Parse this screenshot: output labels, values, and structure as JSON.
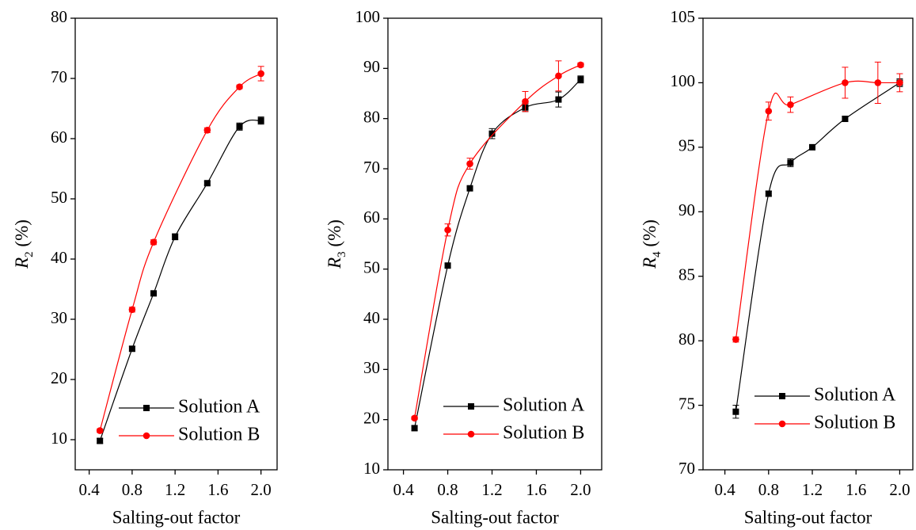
{
  "chart_data": [
    {
      "type": "line",
      "xlabel": "Salting-out factor",
      "ylabel": "R",
      "ylabel_sub": "2",
      "ylabel_unit": "(%)",
      "xlim": [
        0.27,
        2.15
      ],
      "ylim": [
        5,
        80
      ],
      "xticks": [
        0.4,
        0.8,
        1.2,
        1.6,
        {
          "value": 2,
          "label": "2.0"
        }
      ],
      "yticks": [
        10,
        20,
        30,
        40,
        50,
        60,
        70,
        80
      ],
      "legend": "lower right",
      "series": [
        {
          "name": "Solution A",
          "color": "#000000",
          "marker": "square",
          "x": [
            0.5,
            0.8,
            1.0,
            1.2,
            1.5,
            1.8,
            2.0
          ],
          "values": [
            9.8,
            25.1,
            34.3,
            43.7,
            52.6,
            62.0,
            63.0
          ],
          "error": [
            0.4,
            0.4,
            0.4,
            0.5,
            0.3,
            0.6,
            0.6
          ]
        },
        {
          "name": "Solution B",
          "color": "#ff0000",
          "marker": "circle",
          "x": [
            0.5,
            0.8,
            1.0,
            1.5,
            1.8,
            2.0
          ],
          "values": [
            11.5,
            31.6,
            42.8,
            61.4,
            68.6,
            70.8
          ],
          "error": [
            0.3,
            0.4,
            0.4,
            0.4,
            0.3,
            1.2
          ]
        }
      ]
    },
    {
      "type": "line",
      "xlabel": "Salting-out factor",
      "ylabel": "R",
      "ylabel_sub": "3",
      "ylabel_unit": "(%)",
      "xlim": [
        0.26,
        2.19
      ],
      "ylim": [
        10,
        100
      ],
      "xticks": [
        0.4,
        0.8,
        1.2,
        1.6,
        {
          "value": 2,
          "label": "2.0"
        }
      ],
      "yticks": [
        10,
        20,
        30,
        40,
        50,
        60,
        70,
        80,
        90,
        100
      ],
      "legend": "lower right",
      "series": [
        {
          "name": "Solution A",
          "color": "#000000",
          "marker": "square",
          "x": [
            0.5,
            0.8,
            1.0,
            1.2,
            1.5,
            1.8,
            2.0
          ],
          "values": [
            18.3,
            50.7,
            66.1,
            77.0,
            82.2,
            83.8,
            87.8
          ],
          "error": [
            0.5,
            0.4,
            0.4,
            1.0,
            0.8,
            1.5,
            0.7
          ]
        },
        {
          "name": "Solution B",
          "color": "#ff0000",
          "marker": "circle",
          "x": [
            0.5,
            0.8,
            1.0,
            1.5,
            1.8,
            2.0
          ],
          "values": [
            20.3,
            57.8,
            71.0,
            83.4,
            88.5,
            90.7
          ],
          "error": [
            0.3,
            1.2,
            1.1,
            2.0,
            3.0,
            0.4
          ]
        }
      ]
    },
    {
      "type": "line",
      "xlabel": "Salting-out factor",
      "ylabel": "R",
      "ylabel_sub": "4",
      "ylabel_unit": "(%)",
      "xlim": [
        0.2,
        2.12
      ],
      "ylim": [
        70,
        105
      ],
      "xticks": [
        0.4,
        0.8,
        1.2,
        1.6,
        {
          "value": 2,
          "label": "2.0"
        }
      ],
      "yticks": [
        70,
        75,
        80,
        85,
        90,
        95,
        100,
        105
      ],
      "legend": "lower right",
      "series": [
        {
          "name": "Solution A",
          "color": "#000000",
          "marker": "square",
          "x": [
            0.5,
            0.8,
            1.0,
            1.2,
            1.5,
            2.0
          ],
          "values": [
            74.5,
            91.4,
            93.8,
            95.0,
            97.2,
            100.0
          ],
          "error": [
            0.5,
            0.2,
            0.3,
            0.2,
            0.2,
            0.3
          ]
        },
        {
          "name": "Solution B",
          "color": "#ff0000",
          "marker": "circle",
          "x": [
            0.5,
            0.8,
            1.0,
            1.5,
            1.8,
            2.0
          ],
          "values": [
            80.1,
            97.8,
            98.3,
            100.0,
            100.0,
            100.0
          ],
          "error": [
            0.2,
            0.7,
            0.6,
            1.2,
            1.6,
            0.7
          ]
        }
      ]
    }
  ]
}
